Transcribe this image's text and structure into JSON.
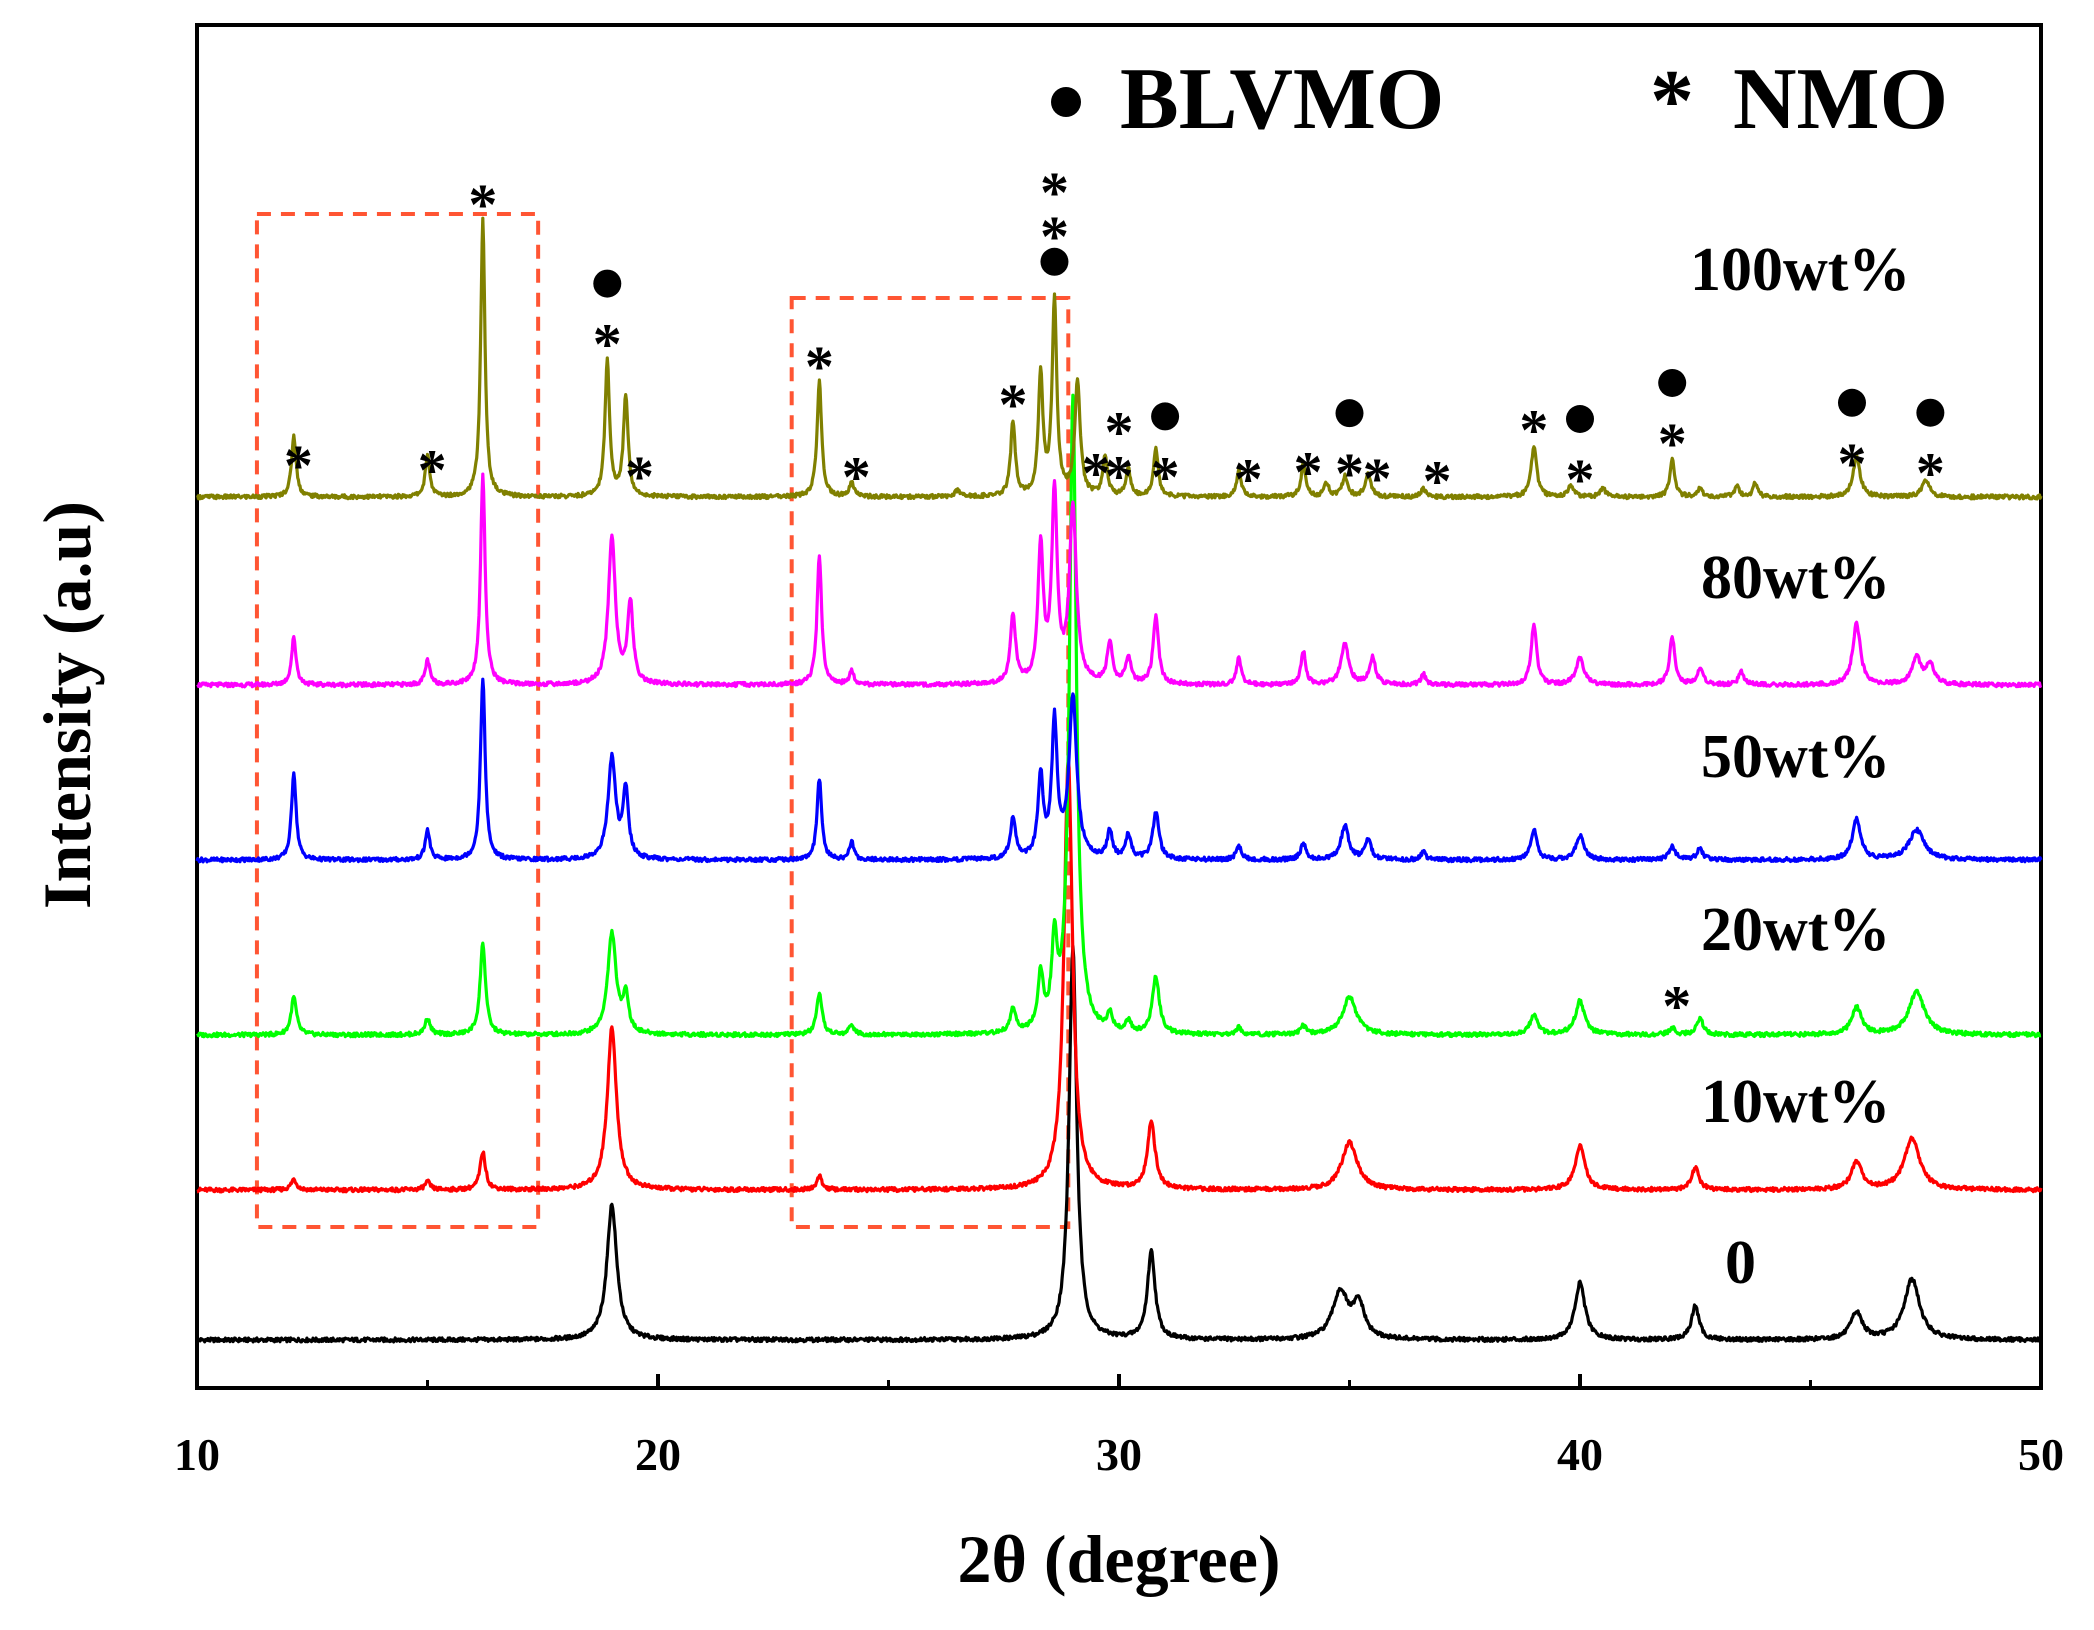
{
  "chart_data": {
    "type": "line",
    "title": "",
    "xlabel": "2θ (degree)",
    "ylabel": "Intensity (a.u)",
    "xlim": [
      10,
      50
    ],
    "x_ticks": [
      "10",
      "20",
      "30",
      "40",
      "50"
    ],
    "legend": [
      {
        "symbol": "●",
        "label": "BLVMO",
        "shape": "circle"
      },
      {
        "symbol": "*",
        "label": "NMO",
        "shape": "star"
      }
    ],
    "series": [
      {
        "name": "0",
        "label": "0",
        "color": "#000000",
        "peaks": [
          [
            19.0,
            1.0,
            0.13
          ],
          [
            29.0,
            2.9,
            0.1
          ],
          [
            30.7,
            0.65,
            0.1
          ],
          [
            34.8,
            0.35,
            0.2
          ],
          [
            35.2,
            0.25,
            0.15
          ],
          [
            40.0,
            0.42,
            0.13
          ],
          [
            42.5,
            0.25,
            0.1
          ],
          [
            46.0,
            0.2,
            0.15
          ],
          [
            47.2,
            0.45,
            0.2
          ]
        ]
      },
      {
        "name": "10wt%",
        "label": "10wt%",
        "color": "#ff0000",
        "peaks": [
          [
            12.1,
            0.08,
            0.07
          ],
          [
            15.0,
            0.06,
            0.07
          ],
          [
            16.2,
            0.28,
            0.07
          ],
          [
            19.0,
            1.2,
            0.12
          ],
          [
            23.5,
            0.1,
            0.07
          ],
          [
            28.9,
            3.2,
            0.11
          ],
          [
            30.7,
            0.5,
            0.1
          ],
          [
            35.0,
            0.35,
            0.2
          ],
          [
            40.0,
            0.32,
            0.13
          ],
          [
            42.5,
            0.16,
            0.1
          ],
          [
            46.0,
            0.2,
            0.14
          ],
          [
            47.2,
            0.38,
            0.2
          ]
        ]
      },
      {
        "name": "20wt%",
        "label": "20wt%",
        "color": "#00ff00",
        "peaks": [
          [
            12.1,
            0.28,
            0.07
          ],
          [
            15.0,
            0.12,
            0.07
          ],
          [
            16.2,
            0.68,
            0.07
          ],
          [
            19.0,
            0.75,
            0.11
          ],
          [
            19.3,
            0.28,
            0.07
          ],
          [
            23.5,
            0.3,
            0.07
          ],
          [
            24.2,
            0.08,
            0.06
          ],
          [
            27.7,
            0.18,
            0.07
          ],
          [
            28.3,
            0.4,
            0.07
          ],
          [
            28.6,
            0.6,
            0.07
          ],
          [
            29.0,
            4.7,
            0.09
          ],
          [
            29.8,
            0.12,
            0.07
          ],
          [
            30.2,
            0.08,
            0.07
          ],
          [
            30.8,
            0.42,
            0.09
          ],
          [
            32.6,
            0.05,
            0.07
          ],
          [
            34.0,
            0.06,
            0.07
          ],
          [
            35.0,
            0.28,
            0.18
          ],
          [
            39.0,
            0.15,
            0.1
          ],
          [
            40.0,
            0.25,
            0.12
          ],
          [
            42.0,
            0.05,
            0.08
          ],
          [
            42.6,
            0.12,
            0.09
          ],
          [
            46.0,
            0.2,
            0.13
          ],
          [
            47.3,
            0.32,
            0.2
          ]
        ]
      },
      {
        "name": "50wt%",
        "label": "50wt%",
        "color": "#0000ff",
        "peaks": [
          [
            12.1,
            0.65,
            0.06
          ],
          [
            15.0,
            0.22,
            0.06
          ],
          [
            16.2,
            1.35,
            0.06
          ],
          [
            19.0,
            0.75,
            0.1
          ],
          [
            19.3,
            0.5,
            0.07
          ],
          [
            23.5,
            0.6,
            0.06
          ],
          [
            24.2,
            0.13,
            0.06
          ],
          [
            27.7,
            0.3,
            0.07
          ],
          [
            28.3,
            0.6,
            0.07
          ],
          [
            28.6,
            1.0,
            0.07
          ],
          [
            29.0,
            1.2,
            0.1
          ],
          [
            29.8,
            0.2,
            0.07
          ],
          [
            30.2,
            0.18,
            0.07
          ],
          [
            30.8,
            0.35,
            0.08
          ],
          [
            32.6,
            0.1,
            0.07
          ],
          [
            34.0,
            0.12,
            0.07
          ],
          [
            34.9,
            0.25,
            0.1
          ],
          [
            35.4,
            0.15,
            0.08
          ],
          [
            36.6,
            0.06,
            0.06
          ],
          [
            39.0,
            0.22,
            0.08
          ],
          [
            40.0,
            0.18,
            0.1
          ],
          [
            42.0,
            0.1,
            0.08
          ],
          [
            42.6,
            0.08,
            0.08
          ],
          [
            46.0,
            0.3,
            0.11
          ],
          [
            47.3,
            0.22,
            0.2
          ]
        ]
      },
      {
        "name": "80wt%",
        "label": "80wt%",
        "color": "#ff00ff",
        "peaks": [
          [
            12.1,
            0.35,
            0.06
          ],
          [
            15.0,
            0.18,
            0.06
          ],
          [
            16.2,
            1.55,
            0.06
          ],
          [
            19.0,
            1.1,
            0.09
          ],
          [
            19.4,
            0.6,
            0.07
          ],
          [
            23.5,
            0.95,
            0.06
          ],
          [
            24.2,
            0.1,
            0.06
          ],
          [
            27.7,
            0.5,
            0.07
          ],
          [
            28.3,
            1.0,
            0.07
          ],
          [
            28.6,
            1.4,
            0.07
          ],
          [
            29.0,
            1.3,
            0.09
          ],
          [
            29.8,
            0.3,
            0.07
          ],
          [
            30.2,
            0.2,
            0.07
          ],
          [
            30.8,
            0.5,
            0.07
          ],
          [
            32.6,
            0.2,
            0.06
          ],
          [
            34.0,
            0.25,
            0.06
          ],
          [
            34.9,
            0.3,
            0.1
          ],
          [
            35.5,
            0.2,
            0.08
          ],
          [
            36.6,
            0.08,
            0.06
          ],
          [
            39.0,
            0.45,
            0.07
          ],
          [
            40.0,
            0.2,
            0.1
          ],
          [
            42.0,
            0.35,
            0.07
          ],
          [
            42.6,
            0.12,
            0.08
          ],
          [
            43.5,
            0.1,
            0.07
          ],
          [
            46.0,
            0.45,
            0.1
          ],
          [
            47.3,
            0.2,
            0.12
          ],
          [
            47.6,
            0.15,
            0.1
          ]
        ]
      },
      {
        "name": "100wt%",
        "label": "100wt%",
        "color": "#808000",
        "peaks": [
          [
            12.1,
            0.45,
            0.06
          ],
          [
            15.0,
            0.3,
            0.06
          ],
          [
            16.2,
            2.05,
            0.055
          ],
          [
            18.9,
            1.0,
            0.06
          ],
          [
            19.3,
            0.75,
            0.06
          ],
          [
            23.5,
            0.85,
            0.06
          ],
          [
            24.2,
            0.1,
            0.06
          ],
          [
            26.5,
            0.05,
            0.06
          ],
          [
            27.7,
            0.55,
            0.06
          ],
          [
            28.3,
            0.9,
            0.06
          ],
          [
            28.6,
            1.45,
            0.06
          ],
          [
            29.1,
            0.85,
            0.07
          ],
          [
            29.7,
            0.3,
            0.06
          ],
          [
            30.2,
            0.2,
            0.06
          ],
          [
            30.8,
            0.35,
            0.06
          ],
          [
            32.6,
            0.2,
            0.06
          ],
          [
            34.0,
            0.25,
            0.06
          ],
          [
            34.5,
            0.1,
            0.06
          ],
          [
            34.9,
            0.15,
            0.07
          ],
          [
            35.4,
            0.18,
            0.07
          ],
          [
            36.6,
            0.06,
            0.06
          ],
          [
            39.0,
            0.38,
            0.07
          ],
          [
            39.8,
            0.08,
            0.08
          ],
          [
            40.5,
            0.06,
            0.07
          ],
          [
            42.0,
            0.28,
            0.06
          ],
          [
            42.6,
            0.06,
            0.07
          ],
          [
            43.4,
            0.08,
            0.06
          ],
          [
            43.8,
            0.1,
            0.06
          ],
          [
            46.0,
            0.3,
            0.09
          ],
          [
            47.5,
            0.12,
            0.1
          ]
        ]
      }
    ],
    "annotations_100wt": [
      {
        "x": 12.2,
        "symbols": [
          "*"
        ]
      },
      {
        "x": 15.1,
        "symbols": [
          "*"
        ]
      },
      {
        "x": 16.2,
        "symbols": [
          "*"
        ]
      },
      {
        "x": 18.9,
        "symbols": [
          "●",
          "*"
        ]
      },
      {
        "x": 19.6,
        "symbols": [
          "*"
        ]
      },
      {
        "x": 23.5,
        "symbols": [
          "*"
        ]
      },
      {
        "x": 24.3,
        "symbols": [
          "*"
        ]
      },
      {
        "x": 27.7,
        "symbols": [
          "*"
        ]
      },
      {
        "x": 28.6,
        "symbols": [
          "*",
          "*",
          "●"
        ]
      },
      {
        "x": 29.5,
        "symbols": [
          "*"
        ]
      },
      {
        "x": 30.0,
        "symbols": [
          "*",
          "*"
        ]
      },
      {
        "x": 31.0,
        "symbols": [
          "●",
          "*"
        ]
      },
      {
        "x": 32.8,
        "symbols": [
          "*"
        ]
      },
      {
        "x": 34.1,
        "symbols": [
          "*"
        ]
      },
      {
        "x": 35.0,
        "symbols": [
          "●",
          "*"
        ]
      },
      {
        "x": 35.6,
        "symbols": [
          "*"
        ]
      },
      {
        "x": 36.9,
        "symbols": [
          "*"
        ]
      },
      {
        "x": 39.0,
        "symbols": [
          "*"
        ]
      },
      {
        "x": 40.0,
        "symbols": [
          "●",
          "*"
        ]
      },
      {
        "x": 42.0,
        "symbols": [
          "●",
          "*"
        ]
      },
      {
        "x": 45.9,
        "symbols": [
          "●",
          "*"
        ]
      },
      {
        "x": 47.6,
        "symbols": [
          "●",
          "*"
        ]
      }
    ],
    "annotations_20wt": [
      {
        "x": 42.1,
        "symbols": [
          "*"
        ]
      }
    ],
    "highlight_boxes": [
      {
        "x_range": [
          11.3,
          17.4
        ],
        "color": "#ff5533"
      },
      {
        "x_range": [
          22.9,
          28.9
        ],
        "color": "#ff5533"
      }
    ]
  }
}
